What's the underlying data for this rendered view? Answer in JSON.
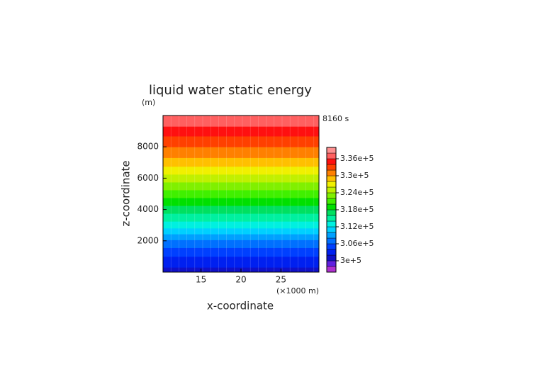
{
  "chart_data": {
    "type": "contour",
    "title": "liquid water static energy",
    "y_unit": "(m)",
    "x_unit": "(×1000 m)",
    "time_label": "8160 s",
    "x_label": "x-coordinate",
    "y_label": "z-coordinate",
    "xlim": [
      10.25,
      29.75
    ],
    "xticks": [
      15,
      20,
      25
    ],
    "ylim": [
      0,
      10000
    ],
    "yticks": [
      2000,
      4000,
      6000,
      8000
    ],
    "z": [
      0,
      1000,
      2000,
      3000,
      4000,
      5000,
      6000,
      7000,
      8000,
      9000,
      10000
    ],
    "profile": [
      301000,
      304000,
      307500,
      313000,
      317000,
      321000,
      325000,
      329000,
      332000,
      335000,
      338000
    ],
    "levels": [
      296000,
      298000,
      300000,
      302000,
      304000,
      306000,
      308000,
      310000,
      312000,
      314000,
      316000,
      318000,
      320000,
      322000,
      324000,
      326000,
      328000,
      330000,
      332000,
      334000,
      336000,
      338000,
      340000
    ],
    "colors": [
      "#b030d0",
      "#6020e0",
      "#1010c8",
      "#0020f0",
      "#0040ff",
      "#0070ff",
      "#00a0ff",
      "#00d0ff",
      "#00f0e0",
      "#00f0a0",
      "#00e060",
      "#00e000",
      "#40f000",
      "#80f000",
      "#c0f000",
      "#f0f000",
      "#ffc000",
      "#ff8000",
      "#ff4000",
      "#ff1010",
      "#ff6060",
      "#ff9090"
    ],
    "colorbar_ticks": [
      {
        "value": 300000,
        "label": "3e+5"
      },
      {
        "value": 306000,
        "label": "3.06e+5"
      },
      {
        "value": 312000,
        "label": "3.12e+5"
      },
      {
        "value": 318000,
        "label": "3.18e+5"
      },
      {
        "value": 324000,
        "label": "3.24e+5"
      },
      {
        "value": 330000,
        "label": "3.3e+5"
      },
      {
        "value": 336000,
        "label": "3.36e+5"
      }
    ]
  }
}
